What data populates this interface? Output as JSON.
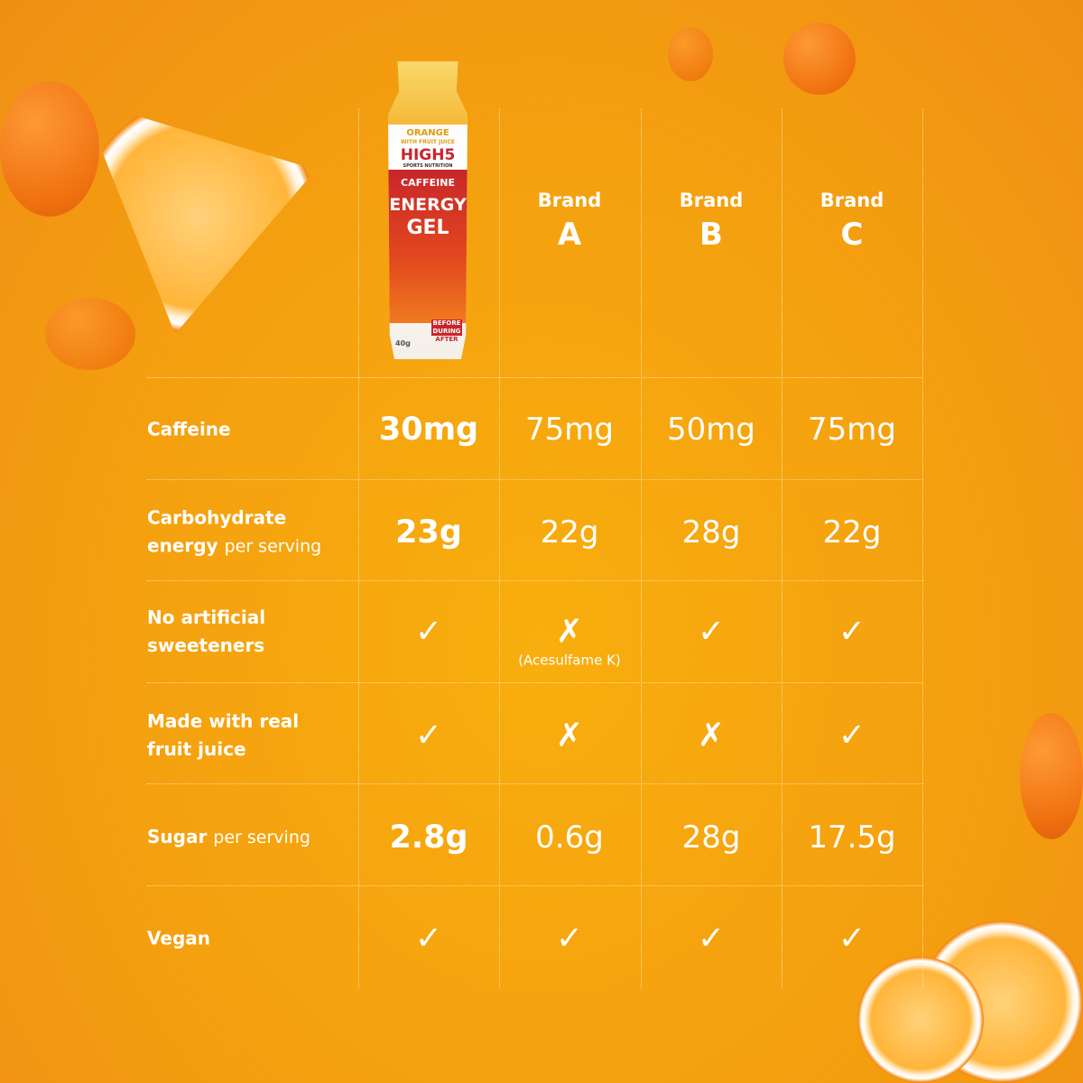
{
  "product": {
    "brand_logo": "HIGH5",
    "brand_sub": "SPORTS NUTRITION",
    "flavour": "ORANGE",
    "flavour_sub": "WITH FRUIT JUICE",
    "line1": "CAFFEINE",
    "line2": "ENERGY",
    "line3": "GEL",
    "timing": [
      "BEFORE",
      "DURING",
      "AFTER"
    ],
    "weight": "40g"
  },
  "columns": [
    {
      "brand": "Brand",
      "letter": "A"
    },
    {
      "brand": "Brand",
      "letter": "B"
    },
    {
      "brand": "Brand",
      "letter": "C"
    }
  ],
  "rows": [
    {
      "label_bold": "Caffeine",
      "label_light": "",
      "values": [
        "30mg",
        "75mg",
        "50mg",
        "75mg"
      ]
    },
    {
      "label_bold": "Carbohydrate energy",
      "label_light": "per serving",
      "values": [
        "23g",
        "22g",
        "28g",
        "22g"
      ]
    },
    {
      "label_bold": "No artificial sweeteners",
      "label_light": "",
      "values": [
        "✓",
        "✗",
        "✓",
        "✓"
      ],
      "note": "(Acesulfame K)"
    },
    {
      "label_bold": "Made with real fruit juice",
      "label_light": "",
      "values": [
        "✓",
        "✗",
        "✗",
        "✓"
      ]
    },
    {
      "label_bold": "Sugar",
      "label_light": "per serving",
      "values": [
        "2.8g",
        "0.6g",
        "28g",
        "17.5g"
      ]
    },
    {
      "label_bold": "Vegan",
      "label_light": "",
      "values": [
        "✓",
        "✓",
        "✓",
        "✓"
      ]
    }
  ],
  "colors": {
    "background": "#f4a00f",
    "text": "#ffffff",
    "gel_red": "#c8262a"
  }
}
